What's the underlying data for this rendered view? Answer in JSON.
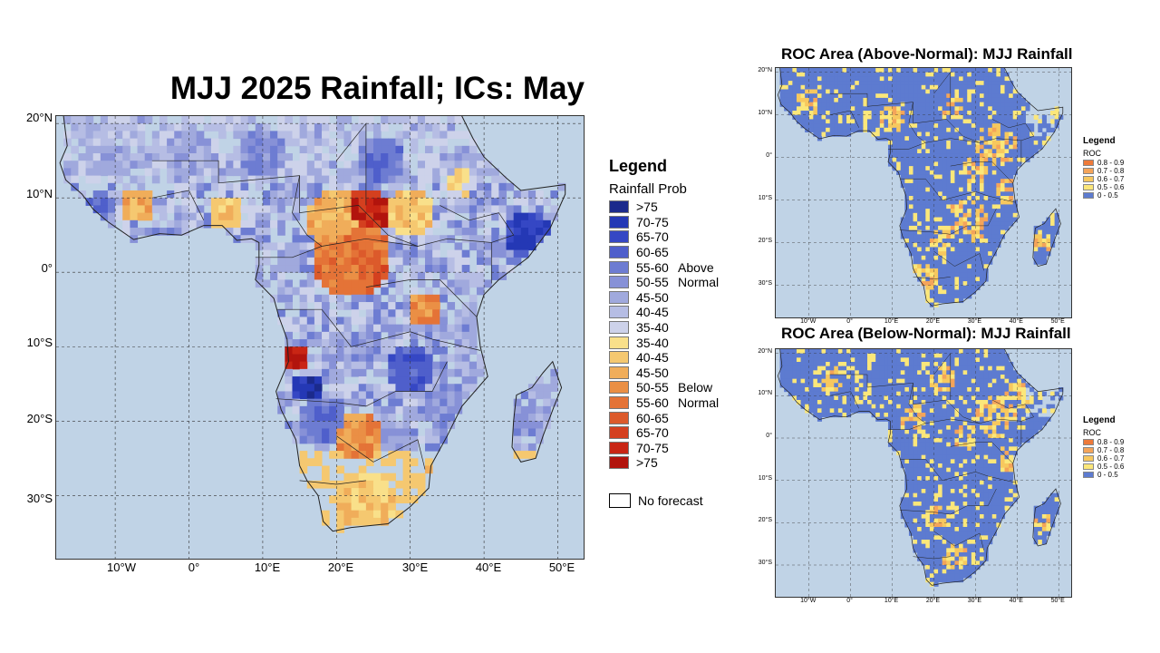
{
  "main": {
    "title": "MJJ 2025 Rainfall; ICs: May",
    "lat_labels": [
      "20°N",
      "10°N",
      "0°",
      "10°S",
      "20°S",
      "30°S"
    ],
    "lon_labels": [
      "10°W",
      "0°",
      "10°E",
      "20°E",
      "30°E",
      "40°E",
      "50°E"
    ]
  },
  "legend": {
    "title": "Legend",
    "subtitle": "Rainfall Prob",
    "rows": [
      {
        "label": ">75",
        "color": "#1b2a8c",
        "group": ""
      },
      {
        "label": "70-75",
        "color": "#2438b5",
        "group": ""
      },
      {
        "label": "65-70",
        "color": "#3547c4",
        "group": ""
      },
      {
        "label": "60-65",
        "color": "#4f5fcb",
        "group": ""
      },
      {
        "label": "55-60",
        "color": "#6d7cd2",
        "group": "Above"
      },
      {
        "label": "50-55",
        "color": "#8791d7",
        "group": "Normal"
      },
      {
        "label": "45-50",
        "color": "#a0a9dd",
        "group": ""
      },
      {
        "label": "40-45",
        "color": "#b6bde4",
        "group": ""
      },
      {
        "label": "35-40",
        "color": "#cdd2ea",
        "group": ""
      },
      {
        "label": "35-40",
        "color": "#f9e08a",
        "group": ""
      },
      {
        "label": "40-45",
        "color": "#f5c870",
        "group": ""
      },
      {
        "label": "45-50",
        "color": "#f0ad5a",
        "group": ""
      },
      {
        "label": "50-55",
        "color": "#ea8f45",
        "group": "Below"
      },
      {
        "label": "55-60",
        "color": "#e47337",
        "group": "Normal"
      },
      {
        "label": "60-65",
        "color": "#dc5a2b",
        "group": ""
      },
      {
        "label": "65-70",
        "color": "#d4401f",
        "group": ""
      },
      {
        "label": "70-75",
        "color": "#c92514",
        "group": ""
      },
      {
        "label": ">75",
        "color": "#b2140d",
        "group": ""
      }
    ],
    "no_forecast": "No forecast"
  },
  "roc_above": {
    "title": "ROC Area (Above-Normal): MJJ Rainfall",
    "lat_labels": [
      "20°N",
      "10°N",
      "0°",
      "10°S",
      "20°S",
      "30°S"
    ],
    "lon_labels": [
      "10°W",
      "0°",
      "10°E",
      "20°E",
      "30°E",
      "40°E",
      "50°E"
    ],
    "legend_title": "Legend",
    "legend_subtitle": "ROC",
    "legend_rows": [
      {
        "label": "0.8 - 0.9",
        "color": "#ee7a3a"
      },
      {
        "label": "0.7 - 0.8",
        "color": "#f4a45a"
      },
      {
        "label": "0.6 - 0.7",
        "color": "#f7c85e"
      },
      {
        "label": "0.5 - 0.6",
        "color": "#fbe77a"
      },
      {
        "label": "0 - 0.5",
        "color": "#5d7bd0"
      }
    ]
  },
  "roc_below": {
    "title": "ROC Area (Below-Normal): MJJ Rainfall",
    "lat_labels": [
      "20°N",
      "10°N",
      "0°",
      "10°S",
      "20°S",
      "30°S"
    ],
    "lon_labels": [
      "10°W",
      "0°",
      "10°E",
      "20°E",
      "30°E",
      "40°E",
      "50°E"
    ],
    "legend_title": "Legend",
    "legend_subtitle": "ROC",
    "legend_rows": [
      {
        "label": "0.8 - 0.9",
        "color": "#ee7a3a"
      },
      {
        "label": "0.7 - 0.8",
        "color": "#f4a45a"
      },
      {
        "label": "0.6 - 0.7",
        "color": "#f7c85e"
      },
      {
        "label": "0.5 - 0.6",
        "color": "#fbe77a"
      },
      {
        "label": "0 - 0.5",
        "color": "#5d7bd0"
      }
    ]
  },
  "colors": {
    "ocean": "#c0d3e6",
    "land_outline": "#222222",
    "gridline": "#333333"
  }
}
